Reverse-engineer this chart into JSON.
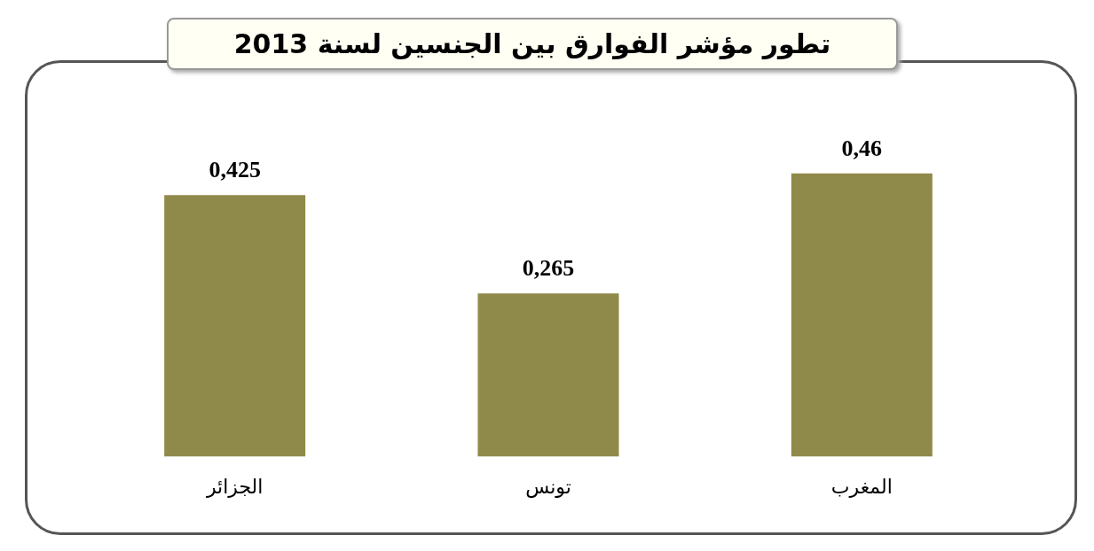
{
  "chart_data": {
    "type": "bar",
    "title": "تطور مؤشر الفوارق بين الجنسين لسنة 2013",
    "categories": [
      "الجزائر",
      "تونس",
      "المغرب"
    ],
    "values": [
      0.425,
      0.265,
      0.46
    ],
    "value_labels": [
      "0,425",
      "0,265",
      "0,46"
    ],
    "color": "#8f8a4a",
    "grid": false,
    "legend": false
  }
}
